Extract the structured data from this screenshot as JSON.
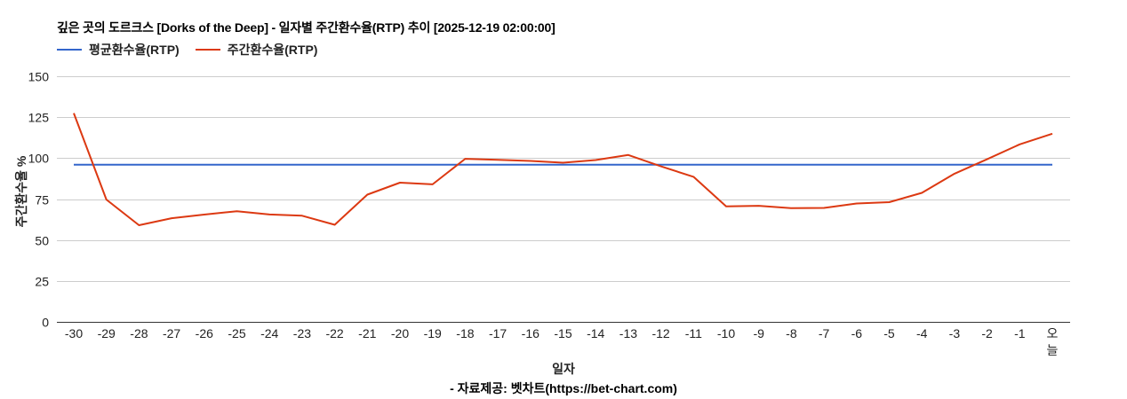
{
  "header": {
    "title": "깊은 곳의 도르크스 [Dorks of the Deep] - 일자별 주간환수율(RTP) 추이 [2025-12-19 02:00:00]"
  },
  "legend": {
    "items": [
      {
        "label": "평균환수율(RTP)",
        "color": "#3366cc"
      },
      {
        "label": "주간환수율(RTP)",
        "color": "#dc3912"
      }
    ]
  },
  "axes": {
    "ylabel": "주간환수율 %",
    "xlabel": "일자"
  },
  "footer": {
    "source": "- 자료제공: 벳차트(https://bet-chart.com)"
  },
  "chart_data": {
    "type": "line",
    "title": "깊은 곳의 도르크스 [Dorks of the Deep] - 일자별 주간환수율(RTP) 추이 [2025-12-19 02:00:00]",
    "xlabel": "일자",
    "ylabel": "주간환수율 %",
    "ylim": [
      0,
      150
    ],
    "yticks": [
      0,
      25,
      50,
      75,
      100,
      125,
      150
    ],
    "grid": true,
    "legend_position": "top-left",
    "categories": [
      "-30",
      "-29",
      "-28",
      "-27",
      "-26",
      "-25",
      "-24",
      "-23",
      "-22",
      "-21",
      "-20",
      "-19",
      "-18",
      "-17",
      "-16",
      "-15",
      "-14",
      "-13",
      "-12",
      "-11",
      "-10",
      "-9",
      "-8",
      "-7",
      "-6",
      "-5",
      "-4",
      "-3",
      "-2",
      "-1",
      "오늘"
    ],
    "series": [
      {
        "name": "평균환수율(RTP)",
        "color": "#3366cc",
        "values": [
          96,
          96,
          96,
          96,
          96,
          96,
          96,
          96,
          96,
          96,
          96,
          96,
          96,
          96,
          96,
          96,
          96,
          96,
          96,
          96,
          96,
          96,
          96,
          96,
          96,
          96,
          96,
          96,
          96,
          96,
          96
        ]
      },
      {
        "name": "주간환수율(RTP)",
        "color": "#dc3912",
        "values": [
          127.5,
          74.7,
          59,
          63.3,
          65.5,
          67.6,
          65.6,
          64.8,
          59.3,
          77.7,
          85,
          84,
          99.6,
          99,
          98.3,
          97.2,
          98.8,
          101.9,
          95,
          88.6,
          70.5,
          70.9,
          69.4,
          69.6,
          72.3,
          73.1,
          78.8,
          90.5,
          99.3,
          108.4,
          114.9
        ]
      }
    ]
  }
}
